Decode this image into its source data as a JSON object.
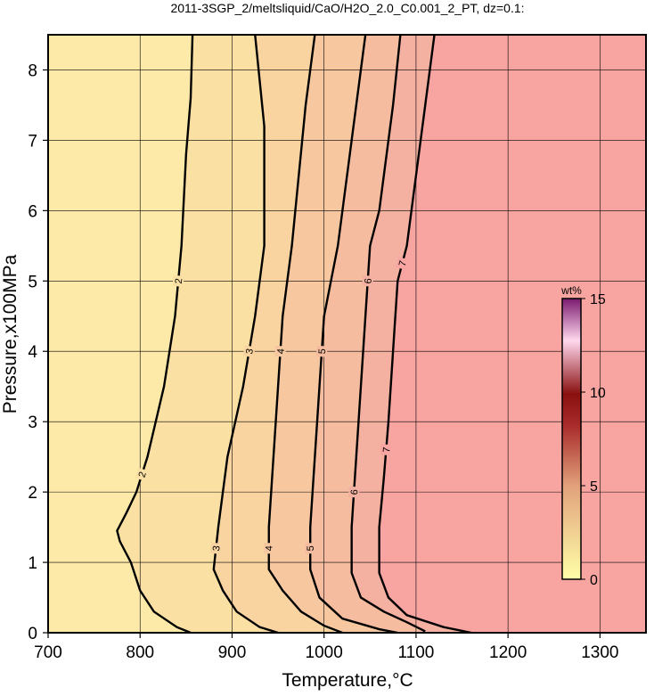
{
  "chart_data": {
    "type": "contour",
    "title": "2011-3SGP_2/meltsliquid/CaO/H2O_2.0_C0.001_2_PT, dz=0.1:",
    "x_label": "Temperature,°C",
    "y_label": "Pressure,x100MPa",
    "xlim": [
      700,
      1350
    ],
    "xticks": [
      700,
      800,
      900,
      1000,
      1100,
      1200,
      1300
    ],
    "ylim": [
      0,
      8.5
    ],
    "yticks": [
      0,
      1,
      2,
      3,
      4,
      5,
      6,
      7,
      8
    ],
    "grid": true,
    "background": "#fde9a8",
    "series": [
      {
        "name": "2",
        "color": "#000000",
        "fill": "#fbe0a3",
        "x": [
          857,
          855,
          850,
          845,
          838,
          826,
          808,
          796,
          785,
          775,
          778,
          790,
          800,
          815,
          840,
          855
        ],
        "y": [
          8.5,
          7.6,
          6.8,
          5.5,
          4.5,
          3.5,
          2.5,
          2.0,
          1.7,
          1.45,
          1.3,
          1.0,
          0.6,
          0.3,
          0.08,
          0
        ]
      },
      {
        "name": "3",
        "color": "#000000",
        "fill": "#f9d4a1",
        "x": [
          925,
          935,
          935,
          925,
          912,
          895,
          885,
          880,
          890,
          905,
          930,
          950
        ],
        "y": [
          8.5,
          7.2,
          5.5,
          4.5,
          3.5,
          2.5,
          1.5,
          0.9,
          0.6,
          0.3,
          0.08,
          0
        ]
      },
      {
        "name": "4",
        "color": "#000000",
        "fill": "#f7c8a0",
        "x": [
          990,
          980,
          965,
          955,
          950,
          945,
          940,
          940,
          955,
          975,
          1000,
          1020
        ],
        "y": [
          8.5,
          7.5,
          5.5,
          4.5,
          3.5,
          2.5,
          1.5,
          0.9,
          0.6,
          0.3,
          0.1,
          0
        ]
      },
      {
        "name": "5",
        "color": "#000000",
        "fill": "#f5bca0",
        "x": [
          1045,
          1035,
          1015,
          1000,
          995,
          990,
          985,
          985,
          995,
          1020,
          1060,
          1080
        ],
        "y": [
          8.5,
          7.5,
          5.5,
          4.5,
          3.5,
          2.5,
          1.5,
          0.9,
          0.5,
          0.2,
          0.05,
          0
        ]
      },
      {
        "name": "6",
        "color": "#000000",
        "fill": "#f4b0a0",
        "x": [
          1083,
          1075,
          1060,
          1050,
          1045,
          1040,
          1035,
          1030,
          1030,
          1040,
          1065,
          1090,
          1110
        ],
        "y": [
          8.5,
          7.5,
          6,
          5.5,
          4.5,
          3.5,
          2.5,
          1.5,
          0.85,
          0.5,
          0.3,
          0.15,
          0.02
        ]
      },
      {
        "name": "7",
        "color": "#000000",
        "fill": "#f8a5a2",
        "x": [
          1120,
          1110,
          1100,
          1090,
          1080,
          1075,
          1070,
          1065,
          1060,
          1060,
          1070,
          1090,
          1130,
          1160
        ],
        "y": [
          8.5,
          7.5,
          6.5,
          5.5,
          5,
          4,
          3,
          2.2,
          1.5,
          0.85,
          0.5,
          0.25,
          0.08,
          0
        ]
      }
    ],
    "colorbar": {
      "label": "wt%",
      "lim": [
        0,
        15
      ],
      "ticks": [
        0,
        5,
        10,
        15
      ]
    }
  }
}
